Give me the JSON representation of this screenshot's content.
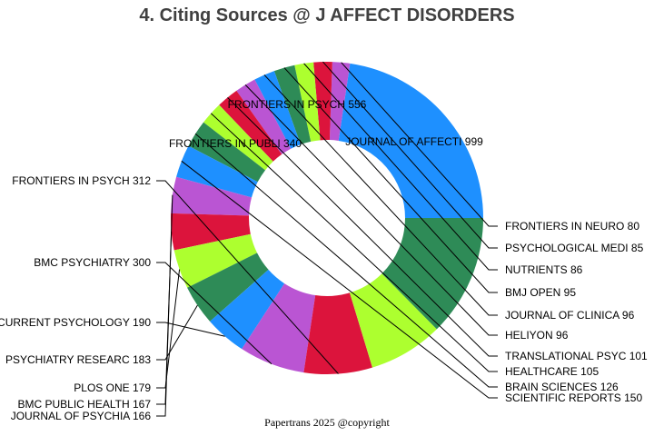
{
  "title": "4. Citing Sources @ J AFFECT DISORDERS",
  "footer": "Papertrans 2025 @copyright",
  "chart_data": {
    "type": "pie",
    "donut": true,
    "title": "4. Citing Sources @ J AFFECT DISORDERS",
    "categories": [
      "JOURNAL OF AFFECTI",
      "FRONTIERS IN NEURO",
      "PSYCHOLOGICAL MEDI",
      "NUTRIENTS",
      "BMJ OPEN",
      "JOURNAL OF CLINICA",
      "HELIYON",
      "TRANSLATIONAL PSYC",
      "HEALTHCARE",
      "BRAIN SCIENCES",
      "SCIENTIFIC REPORTS",
      "JOURNAL OF PSYCHIA",
      "BMC PUBLIC HEALTH",
      "PLOS ONE",
      "PSYCHIATRY RESEARC",
      "CURRENT PSYCHOLOGY",
      "BMC PSYCHIATRY",
      "FRONTIERS IN PSYCH",
      "FRONTIERS IN PUBLI",
      "FRONTIERS IN PSYCH"
    ],
    "values": [
      999,
      80,
      85,
      86,
      95,
      96,
      96,
      101,
      105,
      126,
      150,
      166,
      167,
      179,
      183,
      190,
      300,
      312,
      340,
      556
    ],
    "colors": [
      "#1E90FF",
      "#BA55D3",
      "#DC143C",
      "#ADFF2F",
      "#2E8B57",
      "#1E90FF",
      "#BA55D3",
      "#DC143C",
      "#ADFF2F",
      "#2E8B57",
      "#1E90FF",
      "#BA55D3",
      "#DC143C",
      "#ADFF2F",
      "#2E8B57",
      "#1E90FF",
      "#BA55D3",
      "#DC143C",
      "#ADFF2F",
      "#2E8B57"
    ],
    "labels": [
      "JOURNAL OF AFFECTI 999",
      "FRONTIERS IN NEURO 80",
      "PSYCHOLOGICAL MEDI 85",
      "NUTRIENTS 86",
      "BMJ OPEN 95",
      "JOURNAL OF CLINICA 96",
      "HELIYON 96",
      "TRANSLATIONAL PSYC 101",
      "HEALTHCARE 105",
      "BRAIN SCIENCES 126",
      "SCIENTIFIC REPORTS 150",
      "JOURNAL OF PSYCHIA 166",
      "BMC PUBLIC HEALTH 167",
      "PLOS ONE 179",
      "PSYCHIATRY RESEARC 183",
      "CURRENT PSYCHOLOGY 190",
      "BMC PSYCHIATRY 300",
      "FRONTIERS IN PSYCH 312",
      "FRONTIERS IN PUBLI 340",
      "FRONTIERS IN PSYCH 556"
    ],
    "legend": "none"
  }
}
